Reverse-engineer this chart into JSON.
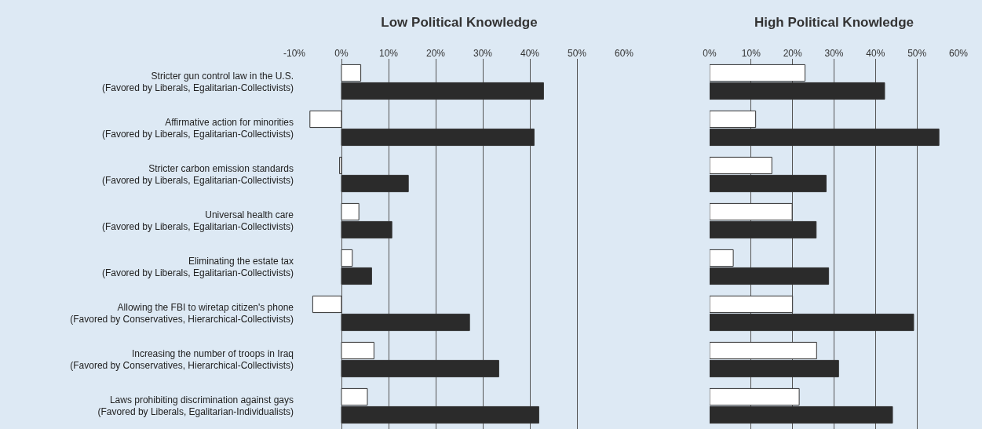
{
  "chart_data": [
    {
      "type": "bar",
      "orientation": "horizontal",
      "title": "Low Political Knowledge",
      "categories": [
        "Stricter gun control law in the U.S.\n(Favored by Liberals, Egalitarian-Collectivists)",
        "Affirmative action for minorities\n(Favored by Liberals, Egalitarian-Collectivists)",
        "Stricter carbon emission standards\n(Favored by Liberals, Egalitarian-Collectivists)",
        "Universal health care\n(Favored by Liberals, Egalitarian-Collectivists)",
        "Eliminating the estate tax\n(Favored by Liberals, Egalitarian-Collectivists)",
        "Allowing the FBI to wiretap citizen's phone\n(Favored by Conservatives, Hierarchical-Collectivists)",
        "Increasing the number of troops in Iraq\n(Favored by Conservatives, Hierarchical-Collectivists)",
        "Laws prohibiting discrimination against gays\n(Favored by Liberals, Egalitarian-Individualists)"
      ],
      "series": [
        {
          "color": "#ffffff",
          "values": [
            4.1,
            -6.7,
            -0.4,
            3.7,
            2.3,
            -6.1,
            6.9,
            5.5
          ]
        },
        {
          "color": "#2b2b2b",
          "values": [
            42.9,
            40.9,
            14.2,
            10.7,
            6.4,
            27.2,
            33.4,
            41.9
          ]
        }
      ],
      "xlim": [
        -10,
        60
      ],
      "xticks": [
        {
          "value": -10,
          "label": "-10%"
        },
        {
          "value": 0,
          "label": "0%"
        },
        {
          "value": 10,
          "label": "10%"
        },
        {
          "value": 20,
          "label": "20%"
        },
        {
          "value": 30,
          "label": "30%"
        },
        {
          "value": 40,
          "label": "40%"
        },
        {
          "value": 50,
          "label": "50%"
        },
        {
          "value": 60,
          "label": "60%"
        }
      ],
      "grid": "x"
    },
    {
      "type": "bar",
      "orientation": "horizontal",
      "title": "High Political Knowledge",
      "categories": [
        null,
        null,
        null,
        null,
        null,
        null,
        null,
        null
      ],
      "series": [
        {
          "color": "#ffffff",
          "values": [
            23.0,
            11.1,
            15.0,
            19.9,
            5.7,
            20.0,
            25.8,
            21.6
          ]
        },
        {
          "color": "#2b2b2b",
          "values": [
            42.2,
            55.3,
            28.1,
            25.7,
            28.7,
            49.2,
            31.1,
            44.1
          ]
        }
      ],
      "xlim": [
        0,
        60
      ],
      "xticks": [
        {
          "value": 0,
          "label": "0%"
        },
        {
          "value": 10,
          "label": "10%"
        },
        {
          "value": 20,
          "label": "20%"
        },
        {
          "value": 30,
          "label": "30%"
        },
        {
          "value": 40,
          "label": "40%"
        },
        {
          "value": 50,
          "label": "50%"
        },
        {
          "value": 60,
          "label": "60%"
        }
      ],
      "grid": "x",
      "tick_labels": "x"
    }
  ]
}
